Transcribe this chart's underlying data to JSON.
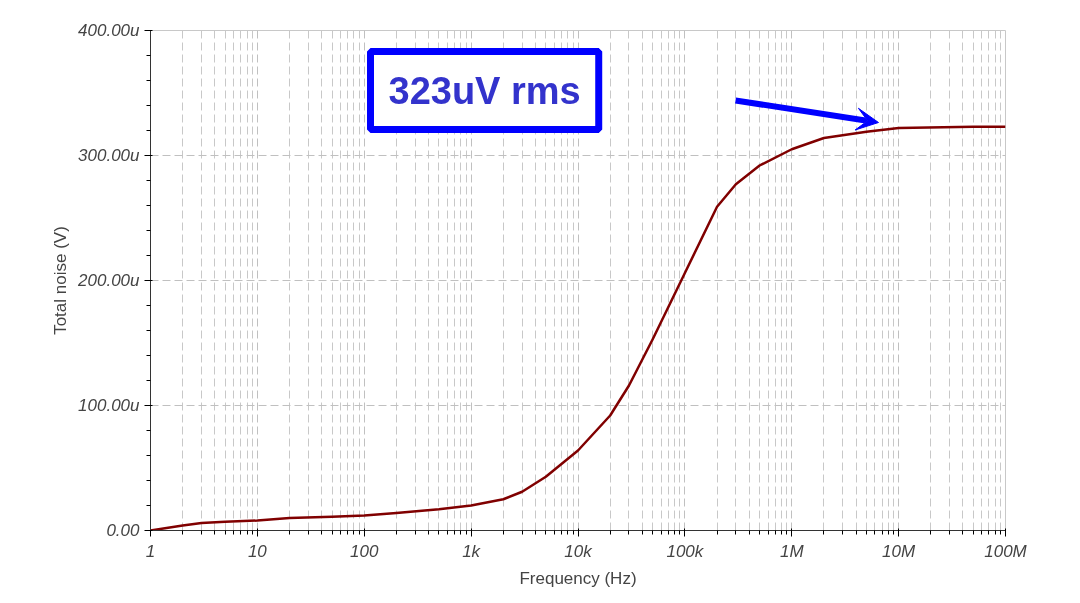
{
  "chart_data": {
    "type": "line",
    "xlabel": "Frequency (Hz)",
    "ylabel": "Total noise (V)",
    "log": "x",
    "grid": true,
    "line_style": "solid",
    "marker": "none",
    "xlim": [
      1,
      100000000
    ],
    "xticks": [
      {
        "value": 1,
        "label": "1"
      },
      {
        "value": 10,
        "label": "10"
      },
      {
        "value": 100,
        "label": "100"
      },
      {
        "value": 1000,
        "label": "1k"
      },
      {
        "value": 10000,
        "label": "10k"
      },
      {
        "value": 100000,
        "label": "100k"
      },
      {
        "value": 1000000,
        "label": "1M"
      },
      {
        "value": 10000000,
        "label": "10M"
      },
      {
        "value": 100000000,
        "label": "100M"
      }
    ],
    "ylim": [
      0,
      400
    ],
    "yticks": [
      {
        "value": 0,
        "label": "0.00"
      },
      {
        "value": 100,
        "label": "100.00u"
      },
      {
        "value": 200,
        "label": "200.00u"
      },
      {
        "value": 300,
        "label": "300.00u"
      },
      {
        "value": 400,
        "label": "400.00u"
      }
    ],
    "x": [
      1,
      2,
      3,
      5,
      10,
      20,
      50,
      100,
      200,
      500,
      1000,
      2000,
      3000,
      5000,
      10000,
      20000,
      30000,
      50000,
      100000,
      200000,
      300000,
      500000,
      1000000,
      2000000,
      5000000,
      10000000,
      50000000,
      100000000
    ],
    "series": [
      {
        "color": "#800000",
        "values": [
          0,
          4,
          6,
          7,
          8,
          10,
          11,
          12,
          14,
          17,
          20,
          25,
          31,
          43,
          64,
          92,
          116,
          153,
          206,
          259,
          277,
          292,
          305,
          314,
          319,
          322,
          323,
          323
        ]
      }
    ],
    "annotations": [
      "323uV rms"
    ]
  }
}
